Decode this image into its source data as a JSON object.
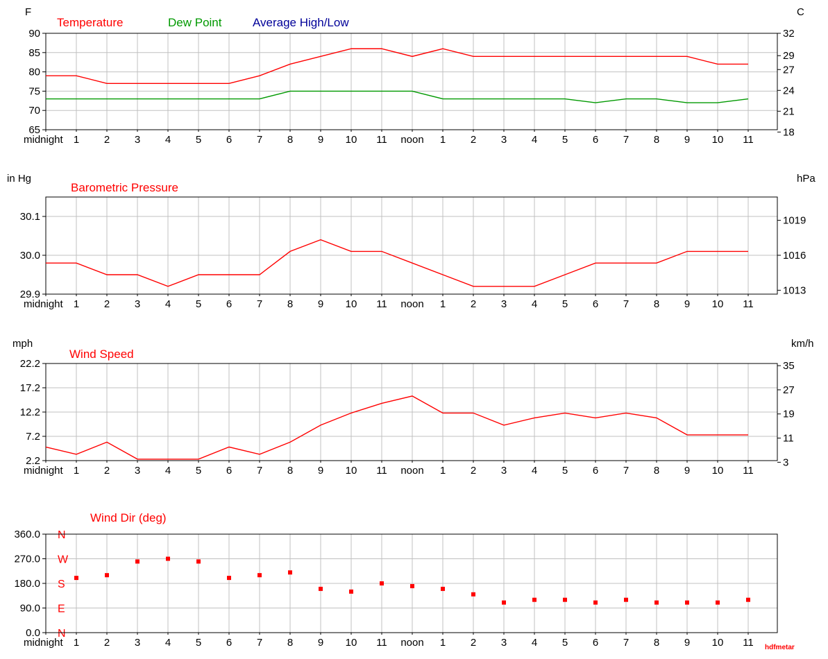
{
  "colors": {
    "temperature": "#ff0000",
    "dew_point": "#009900",
    "average": "#000099",
    "pressure": "#ff0000",
    "wind_speed": "#ff0000",
    "wind_dir": "#ff0000",
    "grid": "#c0c0c0",
    "axis": "#000000"
  },
  "x_tick_labels": [
    "midnight",
    "1",
    "2",
    "3",
    "4",
    "5",
    "6",
    "7",
    "8",
    "9",
    "10",
    "11",
    "noon",
    "1",
    "2",
    "3",
    "4",
    "5",
    "6",
    "7",
    "8",
    "9",
    "10",
    "11"
  ],
  "footer": {
    "credit": "hdfmetar"
  },
  "chart_data": [
    {
      "type": "line",
      "left_unit": "F",
      "right_unit": "C",
      "ylim": [
        65,
        90
      ],
      "yticks": [
        65,
        70,
        75,
        80,
        85,
        90
      ],
      "right_yticks": [
        {
          "at": 90,
          "label": "32"
        },
        {
          "at": 84.2,
          "label": "29"
        },
        {
          "at": 80.6,
          "label": "27"
        },
        {
          "at": 75.2,
          "label": "24"
        },
        {
          "at": 69.8,
          "label": "21"
        },
        {
          "at": 64.4,
          "label": "18"
        }
      ],
      "legend": [
        "Temperature",
        "Dew Point",
        "Average High/Low"
      ],
      "x": [
        0,
        1,
        2,
        3,
        4,
        5,
        6,
        7,
        8,
        9,
        10,
        11,
        12,
        13,
        14,
        15,
        16,
        17,
        18,
        19,
        20,
        21,
        22,
        23
      ],
      "series": [
        {
          "name": "Temperature",
          "color": "#ff0000",
          "values": [
            79,
            79,
            77,
            77,
            77,
            77,
            77,
            79,
            82,
            84,
            86,
            86,
            84,
            86,
            84,
            84,
            84,
            84,
            84,
            84,
            84,
            84,
            82,
            82
          ]
        },
        {
          "name": "Dew Point",
          "color": "#009900",
          "values": [
            73,
            73,
            73,
            73,
            73,
            73,
            73,
            73,
            75,
            75,
            75,
            75,
            75,
            73,
            73,
            73,
            73,
            73,
            72,
            73,
            73,
            72,
            72,
            73
          ]
        }
      ]
    },
    {
      "type": "line",
      "title": "Barometric Pressure",
      "left_unit": "in Hg",
      "right_unit": "hPa",
      "ylim": [
        29.9,
        30.15
      ],
      "yticks": [
        {
          "at": 29.9,
          "label": "29.9"
        },
        {
          "at": 30.0,
          "label": "30.0"
        },
        {
          "at": 30.1,
          "label": "30.1"
        }
      ],
      "right_yticks": [
        {
          "at": 29.91,
          "label": "1013"
        },
        {
          "at": 30.0,
          "label": "1016"
        },
        {
          "at": 30.09,
          "label": "1019"
        }
      ],
      "x": [
        0,
        1,
        2,
        3,
        4,
        5,
        6,
        7,
        8,
        9,
        10,
        11,
        12,
        13,
        14,
        15,
        16,
        17,
        18,
        19,
        20,
        21,
        22,
        23
      ],
      "series": [
        {
          "name": "Barometric Pressure",
          "color": "#ff0000",
          "values": [
            29.98,
            29.98,
            29.95,
            29.95,
            29.92,
            29.95,
            29.95,
            29.95,
            30.01,
            30.04,
            30.01,
            30.01,
            29.98,
            29.95,
            29.92,
            29.92,
            29.92,
            29.95,
            29.98,
            29.98,
            29.98,
            30.01,
            30.01,
            30.01
          ]
        }
      ]
    },
    {
      "type": "line",
      "title": "Wind Speed",
      "left_unit": "mph",
      "right_unit": "km/h",
      "ylim": [
        2.2,
        22.2
      ],
      "yticks": [
        {
          "at": 2.2,
          "label": "2.2"
        },
        {
          "at": 7.2,
          "label": "7.2"
        },
        {
          "at": 12.2,
          "label": "12.2"
        },
        {
          "at": 17.2,
          "label": "17.2"
        },
        {
          "at": 22.2,
          "label": "22.2"
        }
      ],
      "right_yticks": [
        {
          "at": 1.86,
          "label": "3"
        },
        {
          "at": 6.84,
          "label": "11"
        },
        {
          "at": 11.81,
          "label": "19"
        },
        {
          "at": 16.78,
          "label": "27"
        },
        {
          "at": 21.75,
          "label": "35"
        }
      ],
      "x": [
        0,
        1,
        2,
        3,
        4,
        5,
        6,
        7,
        8,
        9,
        10,
        11,
        12,
        13,
        14,
        15,
        16,
        17,
        18,
        19,
        20,
        21,
        22,
        23
      ],
      "series": [
        {
          "name": "Wind Speed",
          "color": "#ff0000",
          "values": [
            5.0,
            3.5,
            6.0,
            2.5,
            2.5,
            2.5,
            5.0,
            3.5,
            6.0,
            9.5,
            12.0,
            14.0,
            15.5,
            12.0,
            12.0,
            9.5,
            11.0,
            12.0,
            11.0,
            12.0,
            11.0,
            7.5,
            7.5,
            7.5
          ]
        }
      ]
    },
    {
      "type": "scatter",
      "title": "Wind Dir (deg)",
      "ylim": [
        0,
        360
      ],
      "yticks": [
        {
          "at": 0,
          "label": "0.0"
        },
        {
          "at": 90,
          "label": "90.0"
        },
        {
          "at": 180,
          "label": "180.0"
        },
        {
          "at": 270,
          "label": "270.0"
        },
        {
          "at": 360,
          "label": "360.0"
        }
      ],
      "compass_labels": [
        {
          "at": 360,
          "label": "N"
        },
        {
          "at": 270,
          "label": "W"
        },
        {
          "at": 180,
          "label": "S"
        },
        {
          "at": 90,
          "label": "E"
        },
        {
          "at": 0,
          "label": "N"
        }
      ],
      "x": [
        1,
        2,
        3,
        4,
        5,
        6,
        7,
        8,
        9,
        10,
        11,
        12,
        13,
        14,
        15,
        16,
        17,
        18,
        19,
        20,
        21,
        22,
        23
      ],
      "series": [
        {
          "name": "Wind Dir (deg)",
          "color": "#ff0000",
          "values": [
            200,
            210,
            260,
            270,
            260,
            200,
            210,
            220,
            160,
            150,
            180,
            170,
            160,
            140,
            110,
            120,
            120,
            110,
            120,
            110,
            110,
            110,
            120
          ]
        }
      ]
    }
  ]
}
